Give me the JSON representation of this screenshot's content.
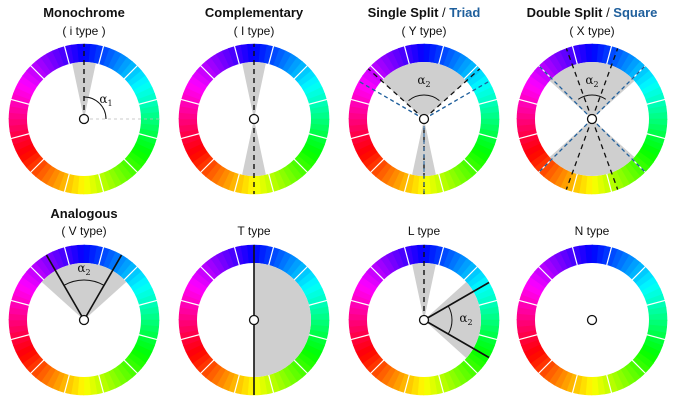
{
  "colors": {
    "sector_fill": "#cfcfcf",
    "accent": "#1f5f9c",
    "line": "#111111",
    "dashed_guide": "#bbbbbb"
  },
  "wheels": [
    {
      "id": "monochrome",
      "title_main": "Monochrome",
      "title_accent": "",
      "subtitle": "( i type )",
      "alpha_symbol": "α",
      "alpha_index": "1"
    },
    {
      "id": "complementary",
      "title_main": "Complementary",
      "title_accent": "",
      "subtitle": "( I type)",
      "alpha_symbol": "",
      "alpha_index": ""
    },
    {
      "id": "single-split",
      "title_main": "Single Split",
      "title_accent": "Triad",
      "subtitle": "( Y type)",
      "alpha_symbol": "α",
      "alpha_index": "2"
    },
    {
      "id": "double-split",
      "title_main": "Double Split",
      "title_accent": "Square",
      "subtitle": "( X type)",
      "alpha_symbol": "α",
      "alpha_index": "2"
    },
    {
      "id": "analogous",
      "title_main": "Analogous",
      "title_accent": "",
      "subtitle": "( V type)",
      "alpha_symbol": "α",
      "alpha_index": "2"
    },
    {
      "id": "t-type",
      "title_main": "",
      "title_accent": "",
      "subtitle": "T type",
      "alpha_symbol": "",
      "alpha_index": ""
    },
    {
      "id": "l-type",
      "title_main": "",
      "title_accent": "",
      "subtitle": "L type",
      "alpha_symbol": "α",
      "alpha_index": "2"
    },
    {
      "id": "n-type",
      "title_main": "",
      "title_accent": "",
      "subtitle": "N type",
      "alpha_symbol": "",
      "alpha_index": ""
    }
  ]
}
